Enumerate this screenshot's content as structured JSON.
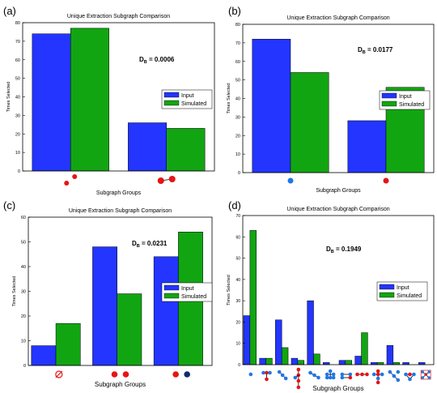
{
  "colors": {
    "input": "#2335ff",
    "simulated": "#12a512",
    "red_node": "#e81414",
    "blue_node": "#1f77e6",
    "navy_node": "#0f2d6b",
    "edge": "#000000"
  },
  "chart_data": [
    {
      "panel_label": "(a)",
      "type": "bar",
      "title": "Unique Extraction Subgraph Comparison",
      "xlabel": "Subgraph Groups",
      "ylabel": "Times Selected",
      "ylim": [
        0,
        80
      ],
      "yticks": [
        "0",
        "10",
        "20",
        "30",
        "40",
        "50",
        "60",
        "70",
        "80"
      ],
      "annotation": {
        "prefix": "D",
        "sub": "B",
        "value": " = 0.0006"
      },
      "legend": {
        "placement": "center-right",
        "entries": [
          "Input",
          "Simulated"
        ]
      },
      "categories": [
        "two-red-nodes",
        "two-connected-red-nodes"
      ],
      "category_icons": [
        "red-pair",
        "red-edge"
      ],
      "series": [
        {
          "name": "Input",
          "values": [
            74,
            26
          ]
        },
        {
          "name": "Simulated",
          "values": [
            77,
            23
          ]
        }
      ]
    },
    {
      "panel_label": "(b)",
      "type": "bar",
      "title": "Unique Extraction Subgraph Comparison",
      "xlabel": "Subgraph Groups",
      "ylabel": "Times Selected",
      "ylim": [
        0,
        80
      ],
      "yticks": [
        "0",
        "10",
        "20",
        "30",
        "40",
        "50",
        "60",
        "70",
        "80"
      ],
      "annotation": {
        "prefix": "D",
        "sub": "B",
        "value": " = 0.0177"
      },
      "legend": {
        "placement": "center-right",
        "entries": [
          "Input",
          "Simulated"
        ]
      },
      "categories": [
        "blue-node",
        "red-node"
      ],
      "category_icons": [
        "blue-single",
        "red-single"
      ],
      "series": [
        {
          "name": "Input",
          "values": [
            72,
            28
          ]
        },
        {
          "name": "Simulated",
          "values": [
            54,
            46
          ]
        }
      ]
    },
    {
      "panel_label": "(c)",
      "type": "bar",
      "title": "Unique Extraction Subgraph Comparison",
      "xlabel": "Subgraph Groups",
      "ylabel": "Times Selected",
      "ylim": [
        0,
        60
      ],
      "yticks": [
        "0",
        "10",
        "20",
        "30",
        "40",
        "50",
        "60"
      ],
      "annotation": {
        "prefix": "D",
        "sub": "B",
        "value": " = 0.0231"
      },
      "legend": {
        "placement": "center-right",
        "entries": [
          "Input",
          "Simulated"
        ]
      },
      "categories": [
        "empty",
        "two-red-nodes",
        "red-and-navy-nodes"
      ],
      "category_icons": [
        "empty-set",
        "red-pair-h",
        "red-navy-pair"
      ],
      "series": [
        {
          "name": "Input",
          "values": [
            8,
            48,
            44
          ]
        },
        {
          "name": "Simulated",
          "values": [
            17,
            29,
            54
          ]
        }
      ]
    },
    {
      "panel_label": "(d)",
      "type": "bar",
      "title": "Unique Extraction Subgraph Comparison",
      "xlabel": "Subgraph Groups",
      "ylabel": "Times Selected",
      "ylim": [
        0,
        70
      ],
      "yticks": [
        "0",
        "10",
        "20",
        "30",
        "40",
        "50",
        "60",
        "70"
      ],
      "annotation": {
        "prefix": "D",
        "sub": "B",
        "value": " = 0.1949"
      },
      "legend": {
        "placement": "center-right",
        "entries": [
          "Input",
          "Simulated"
        ]
      },
      "categories": [
        "g1",
        "g2",
        "g3",
        "g4",
        "g5",
        "g6",
        "g7",
        "g8",
        "g9",
        "g10",
        "g11",
        "g12"
      ],
      "category_icons": [
        "d-dot",
        "d-tee",
        "d-fork",
        "d-chain",
        "d-line",
        "d-cluster",
        "d-hbar",
        "d-red-line",
        "d-cross",
        "d-diag",
        "d-net",
        "d-star"
      ],
      "series": [
        {
          "name": "Input",
          "values": [
            23,
            3,
            21,
            3,
            30,
            1,
            2,
            4,
            1,
            9,
            1,
            1
          ]
        },
        {
          "name": "Simulated",
          "values": [
            63,
            3,
            8,
            2,
            5,
            0,
            2,
            15,
            1,
            1,
            0,
            0
          ]
        }
      ]
    }
  ]
}
